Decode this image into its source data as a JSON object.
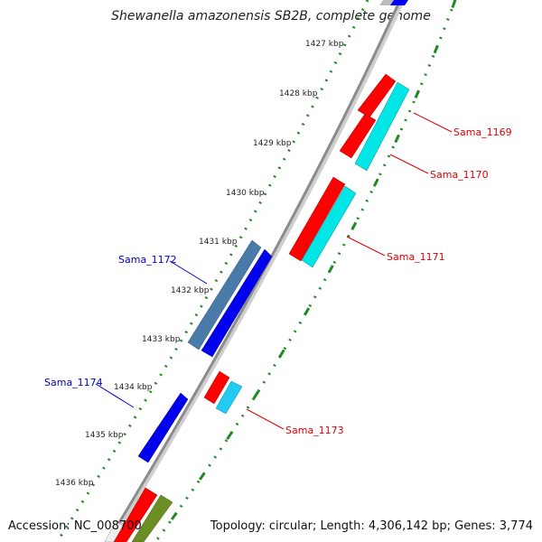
{
  "title": "Shewanella amazonensis SB2B, complete genome",
  "footer": {
    "accession": "Accession: NC_008700",
    "topology": "Topology: circular; Length: 4,306,142 bp; Genes: 3,774"
  },
  "colors": {
    "backbone": "#8c8c8c",
    "tick_marks": "#1f8a1f",
    "red_gene": "#ff0000",
    "cyan_gene": "#00e5e5",
    "blue_gene": "#0000ee",
    "steel_gene": "#4a7ba8",
    "light_blue_gene": "#22ccf0",
    "olive_gene": "#6b8e23",
    "label_red": "#dd0000",
    "label_blue": "#0000cc"
  },
  "kbp_ticks": [
    "1427 kbp",
    "1428 kbp",
    "1429 kbp",
    "1430 kbp",
    "1431 kbp",
    "1432 kbp",
    "1433 kbp",
    "1434 kbp",
    "1435 kbp",
    "1436 kbp"
  ],
  "gene_labels": [
    {
      "name": "Sama_1169",
      "color": "label_red"
    },
    {
      "name": "Sama_1170",
      "color": "label_red"
    },
    {
      "name": "Sama_1171",
      "color": "label_red"
    },
    {
      "name": "Sama_1172",
      "color": "label_blue"
    },
    {
      "name": "Sama_1173",
      "color": "label_red"
    },
    {
      "name": "Sama_1174",
      "color": "label_blue"
    }
  ]
}
